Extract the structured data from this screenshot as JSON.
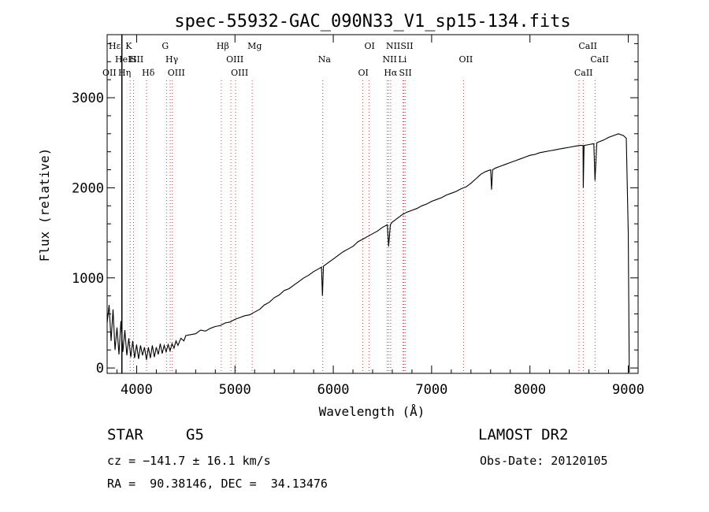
{
  "chart_data": {
    "type": "line",
    "title": "spec-55932-GAC_090N33_V1_sp15-134.fits",
    "xlabel": "Wavelength (Å)",
    "ylabel": "Flux (relative)",
    "xlim": [
      3700,
      9100
    ],
    "ylim": [
      -60,
      3700
    ],
    "xticks": [
      4000,
      5000,
      6000,
      7000,
      8000,
      9000
    ],
    "yticks": [
      0,
      1000,
      2000,
      3000
    ],
    "grid": false,
    "series": [
      {
        "points": [
          [
            3700,
            500
          ],
          [
            3720,
            700
          ],
          [
            3740,
            300
          ],
          [
            3760,
            650
          ],
          [
            3780,
            200
          ],
          [
            3800,
            450
          ],
          [
            3820,
            150
          ],
          [
            3840,
            520
          ],
          [
            3860,
            180
          ],
          [
            3880,
            420
          ],
          [
            3900,
            140
          ],
          [
            3920,
            330
          ],
          [
            3940,
            120
          ],
          [
            3960,
            300
          ],
          [
            3980,
            110
          ],
          [
            4000,
            260
          ],
          [
            4020,
            100
          ],
          [
            4040,
            250
          ],
          [
            4060,
            140
          ],
          [
            4080,
            230
          ],
          [
            4100,
            90
          ],
          [
            4120,
            230
          ],
          [
            4140,
            110
          ],
          [
            4160,
            250
          ],
          [
            4180,
            120
          ],
          [
            4200,
            230
          ],
          [
            4220,
            150
          ],
          [
            4240,
            270
          ],
          [
            4260,
            160
          ],
          [
            4280,
            250
          ],
          [
            4300,
            180
          ],
          [
            4320,
            260
          ],
          [
            4340,
            190
          ],
          [
            4360,
            270
          ],
          [
            4380,
            220
          ],
          [
            4400,
            300
          ],
          [
            4420,
            250
          ],
          [
            4450,
            330
          ],
          [
            4480,
            300
          ],
          [
            4500,
            360
          ],
          [
            4550,
            370
          ],
          [
            4600,
            380
          ],
          [
            4650,
            420
          ],
          [
            4700,
            410
          ],
          [
            4750,
            440
          ],
          [
            4800,
            460
          ],
          [
            4850,
            470
          ],
          [
            4900,
            500
          ],
          [
            4950,
            510
          ],
          [
            5000,
            540
          ],
          [
            5050,
            560
          ],
          [
            5100,
            580
          ],
          [
            5150,
            590
          ],
          [
            5200,
            620
          ],
          [
            5250,
            650
          ],
          [
            5300,
            700
          ],
          [
            5350,
            730
          ],
          [
            5400,
            780
          ],
          [
            5450,
            810
          ],
          [
            5500,
            860
          ],
          [
            5550,
            880
          ],
          [
            5600,
            920
          ],
          [
            5650,
            960
          ],
          [
            5700,
            1000
          ],
          [
            5750,
            1030
          ],
          [
            5800,
            1070
          ],
          [
            5850,
            1100
          ],
          [
            5880,
            1120
          ],
          [
            5890,
            800
          ],
          [
            5900,
            1130
          ],
          [
            5950,
            1170
          ],
          [
            6000,
            1210
          ],
          [
            6050,
            1250
          ],
          [
            6100,
            1290
          ],
          [
            6150,
            1320
          ],
          [
            6200,
            1350
          ],
          [
            6250,
            1400
          ],
          [
            6300,
            1430
          ],
          [
            6350,
            1460
          ],
          [
            6400,
            1490
          ],
          [
            6450,
            1520
          ],
          [
            6500,
            1560
          ],
          [
            6550,
            1590
          ],
          [
            6563,
            1350
          ],
          [
            6580,
            1590
          ],
          [
            6600,
            1620
          ],
          [
            6650,
            1660
          ],
          [
            6700,
            1700
          ],
          [
            6750,
            1730
          ],
          [
            6800,
            1750
          ],
          [
            6850,
            1770
          ],
          [
            6900,
            1800
          ],
          [
            6950,
            1820
          ],
          [
            7000,
            1850
          ],
          [
            7050,
            1870
          ],
          [
            7100,
            1890
          ],
          [
            7150,
            1920
          ],
          [
            7200,
            1940
          ],
          [
            7250,
            1960
          ],
          [
            7300,
            1990
          ],
          [
            7350,
            2010
          ],
          [
            7400,
            2050
          ],
          [
            7450,
            2100
          ],
          [
            7500,
            2150
          ],
          [
            7550,
            2180
          ],
          [
            7600,
            2200
          ],
          [
            7610,
            1980
          ],
          [
            7620,
            2200
          ],
          [
            7650,
            2220
          ],
          [
            7700,
            2240
          ],
          [
            7750,
            2260
          ],
          [
            7800,
            2280
          ],
          [
            7850,
            2300
          ],
          [
            7900,
            2320
          ],
          [
            7950,
            2340
          ],
          [
            8000,
            2360
          ],
          [
            8050,
            2370
          ],
          [
            8100,
            2390
          ],
          [
            8150,
            2400
          ],
          [
            8200,
            2410
          ],
          [
            8250,
            2420
          ],
          [
            8300,
            2430
          ],
          [
            8350,
            2440
          ],
          [
            8400,
            2450
          ],
          [
            8450,
            2460
          ],
          [
            8500,
            2470
          ],
          [
            8540,
            2470
          ],
          [
            8542,
            2000
          ],
          [
            8550,
            2470
          ],
          [
            8600,
            2480
          ],
          [
            8650,
            2490
          ],
          [
            8662,
            2080
          ],
          [
            8680,
            2500
          ],
          [
            8700,
            2510
          ],
          [
            8750,
            2530
          ],
          [
            8800,
            2560
          ],
          [
            8850,
            2580
          ],
          [
            8900,
            2600
          ],
          [
            8950,
            2580
          ],
          [
            8980,
            2550
          ],
          [
            9000,
            1500
          ],
          [
            9010,
            -50
          ]
        ]
      }
    ],
    "vlines": [
      {
        "x": 3934,
        "label": "K"
      },
      {
        "x": 3969,
        "label": "H"
      },
      {
        "x": 4102,
        "label": "Hδ"
      },
      {
        "x": 4304,
        "label": "G"
      },
      {
        "x": 4341,
        "label": "Hγ"
      },
      {
        "x": 4363,
        "label": "OIII"
      },
      {
        "x": 4861,
        "label": "Hβ"
      },
      {
        "x": 4959,
        "label": "OIII"
      },
      {
        "x": 5007,
        "label": "OIII"
      },
      {
        "x": 5175,
        "label": "Mg"
      },
      {
        "x": 5893,
        "label": "Na"
      },
      {
        "x": 6300,
        "label": "OI"
      },
      {
        "x": 6364,
        "label": "OI"
      },
      {
        "x": 6548,
        "label": "NII"
      },
      {
        "x": 6563,
        "label": "Hα"
      },
      {
        "x": 6584,
        "label": "NII"
      },
      {
        "x": 6708,
        "label": "Li"
      },
      {
        "x": 6716,
        "label": "SII"
      },
      {
        "x": 6731,
        "label": "SII"
      },
      {
        "x": 7325,
        "label": "OII"
      },
      {
        "x": 8498,
        "label": "CaII"
      },
      {
        "x": 8542,
        "label": "CaII"
      },
      {
        "x": 8662,
        "label": "CaII"
      }
    ],
    "edge_labels": [
      "OII",
      "Hε",
      "HeI",
      "SII",
      "Hη"
    ],
    "marker_line": {
      "x": 3850
    }
  },
  "info": {
    "object_class": "STAR",
    "subclass": "G5",
    "survey": "LAMOST DR2",
    "cz": "cz = −141.7 ± 16.1 km/s",
    "obs_date": "Obs-Date: 20120105",
    "radec": "RA =  90.38146, DEC =  34.13476"
  }
}
